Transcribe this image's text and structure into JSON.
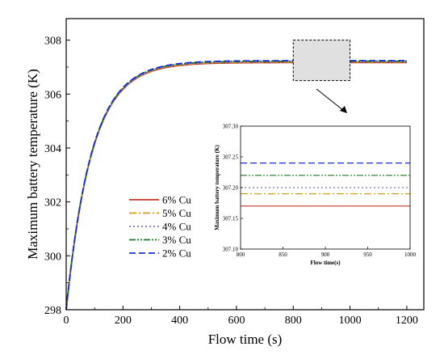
{
  "chart_data": [
    {
      "type": "line",
      "xlabel": "Flow time (s)",
      "ylabel": "Maximum battery temperature (K)",
      "xlim": [
        0,
        1260
      ],
      "ylim": [
        298,
        308.8
      ],
      "xticks": [
        0,
        200,
        400,
        600,
        800,
        1000,
        1200
      ],
      "yticks": [
        298,
        300,
        302,
        304,
        306,
        308
      ],
      "legend_position": "lower-left",
      "grid": false,
      "series": [
        {
          "name": "6% Cu",
          "color": "#c0392b",
          "dash": "solid",
          "T0": 298.0,
          "Tinf": 307.17,
          "tau": 90
        },
        {
          "name": "5% Cu",
          "color": "#d4a017",
          "dash": "dash-dot",
          "T0": 298.0,
          "Tinf": 307.19,
          "tau": 90
        },
        {
          "name": "4% Cu",
          "color": "#8a6fd4",
          "dash": "dotted",
          "T0": 298.0,
          "Tinf": 307.2,
          "tau": 90
        },
        {
          "name": "3% Cu",
          "color": "#1e7a1e",
          "dash": "dash-dot-dot",
          "T0": 298.0,
          "Tinf": 307.22,
          "tau": 90
        },
        {
          "name": "2% Cu",
          "color": "#1a2fd6",
          "dash": "dashed",
          "T0": 298.0,
          "Tinf": 307.24,
          "tau": 90
        }
      ],
      "x_end": 1200,
      "zoom_box": {
        "x": [
          800,
          1000
        ],
        "y": [
          306.5,
          308.0
        ]
      }
    },
    {
      "type": "line",
      "xlabel": "Flow time(s)",
      "ylabel": "Maximum battery temperature (K)",
      "xlim": [
        800,
        1000
      ],
      "ylim": [
        307.1,
        307.3
      ],
      "xticks": [
        800,
        850,
        900,
        950,
        1000
      ],
      "yticks": [
        307.1,
        307.15,
        307.2,
        307.25,
        307.3
      ],
      "ytick_labels": [
        "307.10",
        "307.15",
        "307.20",
        "307.25",
        "307.30"
      ],
      "series": [
        {
          "name": "6% Cu",
          "value": 307.17
        },
        {
          "name": "5% Cu",
          "value": 307.19
        },
        {
          "name": "4% Cu",
          "value": 307.2
        },
        {
          "name": "3% Cu",
          "value": 307.22
        },
        {
          "name": "2% Cu",
          "value": 307.24
        }
      ]
    }
  ]
}
